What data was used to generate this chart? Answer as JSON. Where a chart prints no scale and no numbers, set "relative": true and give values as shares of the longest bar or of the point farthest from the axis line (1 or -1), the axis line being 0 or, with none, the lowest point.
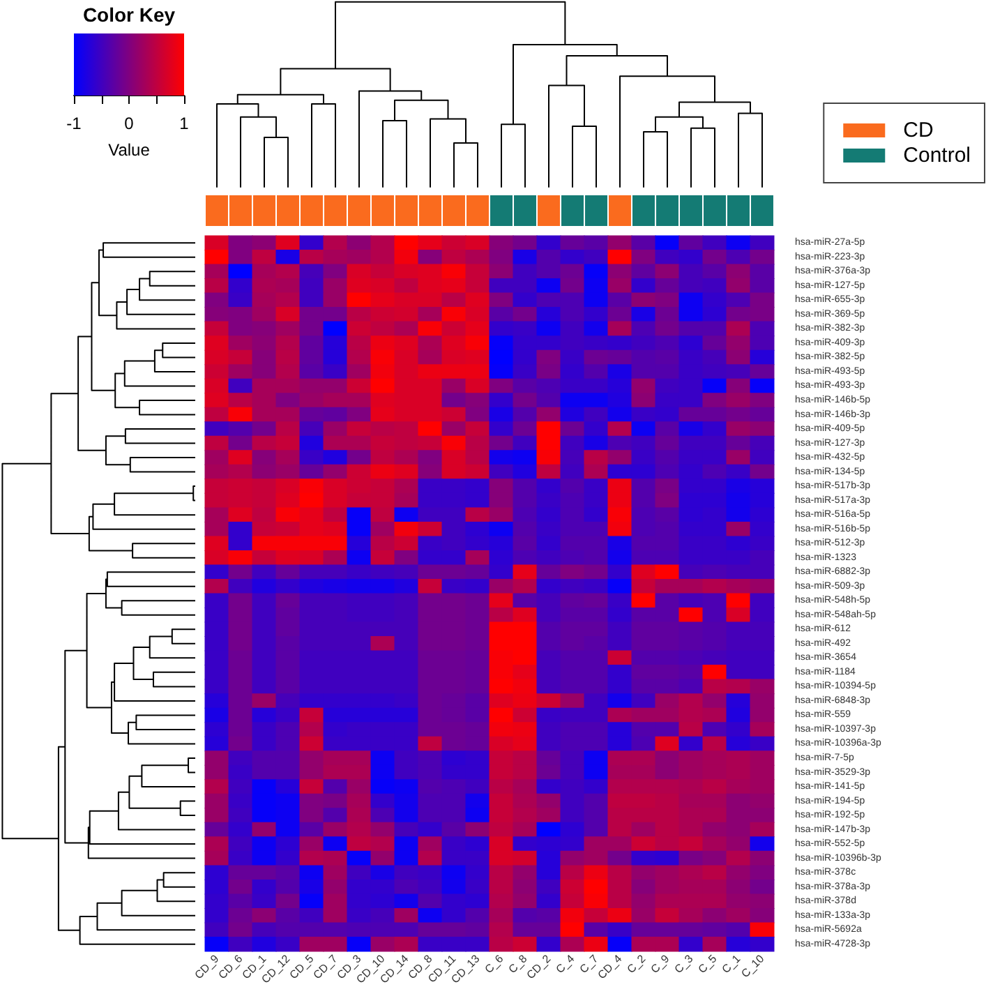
{
  "chart_data": [
    {
      "type": "bar",
      "categories": [
        null,
        null,
        null,
        null,
        null,
        null,
        null,
        null,
        null,
        null,
        null,
        null,
        null,
        null,
        null,
        null,
        null,
        null,
        null,
        null,
        null,
        null,
        null,
        null
      ],
      "series": [
        {
          "name": "CD",
          "color": "#fa6b1e",
          "values": [
            1,
            1,
            1,
            1,
            1,
            1,
            1,
            1,
            1,
            1,
            1,
            1,
            null,
            null,
            1,
            null,
            null,
            1,
            null,
            null,
            null,
            null,
            null,
            null
          ]
        },
        {
          "name": "Control",
          "color": "#147b74",
          "values": [
            null,
            null,
            null,
            null,
            null,
            null,
            null,
            null,
            null,
            null,
            null,
            null,
            1,
            1,
            null,
            1,
            1,
            null,
            1,
            1,
            1,
            1,
            1,
            1
          ]
        }
      ],
      "stacked": true,
      "relative": true,
      "legend": "top right"
    },
    {
      "type": "heatmap",
      "annotations": [
        "Color Key"
      ],
      "clabel": "Value",
      "clim": [
        -1,
        1
      ],
      "cticks": [
        -1,
        {
          "value": -0.5,
          "label": null
        },
        0,
        {
          "value": 0.5,
          "label": null
        },
        1
      ],
      "categories": [
        "CD_9",
        "CD_6",
        "CD_1",
        "CD_12",
        "CD_5",
        "CD_7",
        "CD_3",
        "CD_10",
        "CD_14",
        "CD_8",
        "CD_11",
        "CD_13",
        "C_6",
        "C_8",
        "CD_2",
        "C_4",
        "C_7",
        "CD_4",
        "C_2",
        "C_9",
        "C_3",
        "C_5",
        "C_1",
        "C_10"
      ],
      "y_categories": [
        "hsa-miR-27a-5p",
        "hsa-miR-223-3p",
        "hsa-miR-376a-3p",
        "hsa-miR-127-5p",
        "hsa-miR-655-3p",
        "hsa-miR-369-5p",
        "hsa-miR-382-3p",
        "hsa-miR-409-3p",
        "hsa-miR-382-5p",
        "hsa-miR-493-5p",
        "hsa-miR-493-3p",
        "hsa-miR-146b-5p",
        "hsa-miR-146b-3p",
        "hsa-miR-409-5p",
        "hsa-miR-127-3p",
        "hsa-miR-432-5p",
        "hsa-miR-134-5p",
        "hsa-miR-517b-3p",
        "hsa-miR-517a-3p",
        "hsa-miR-516a-5p",
        "hsa-miR-516b-5p",
        "hsa-miR-512-3p",
        "hsa-miR-1323",
        "hsa-miR-6882-3p",
        "hsa-miR-509-3p",
        "hsa-miR-548h-5p",
        "hsa-miR-548ah-5p",
        "hsa-miR-612",
        "hsa-miR-492",
        "hsa-miR-3654",
        "hsa-miR-1184",
        "hsa-miR-10394-5p",
        "hsa-miR-6848-3p",
        "hsa-miR-559",
        "hsa-miR-10397-3p",
        "hsa-miR-10396a-3p",
        "hsa-miR-7-5p",
        "hsa-miR-3529-3p",
        "hsa-miR-141-5p",
        "hsa-miR-194-5p",
        "hsa-miR-192-5p",
        "hsa-miR-147b-3p",
        "hsa-miR-552-5p",
        "hsa-miR-10396b-3p",
        "hsa-miR-378c",
        "hsa-miR-378a-3p",
        "hsa-miR-378d",
        "hsa-miR-133a-3p",
        "hsa-miR-5692a",
        "hsa-miR-4728-3p"
      ],
      "cells": [
        [
          0.7,
          0,
          0.1,
          0.75,
          -0.6,
          0.4,
          0.1,
          0.4,
          1,
          0.8,
          0.6,
          0.7,
          0.05,
          -0.1,
          -0.6,
          -0.2,
          -0.3,
          0.15,
          -0.3,
          -0.95,
          -0.25,
          -0.5,
          -0.9,
          -0.5
        ],
        [
          1,
          0,
          0.5,
          -0.8,
          0.45,
          0.3,
          0.25,
          0.4,
          0.9,
          0.05,
          0.5,
          0.35,
          0,
          -0.8,
          -0.35,
          -0.6,
          -0.5,
          1,
          0,
          -0.5,
          -0.6,
          -0.1,
          -0.4,
          -0.1
        ],
        [
          0.3,
          -1,
          0.3,
          0.4,
          -0.45,
          0,
          0.7,
          0.55,
          0.7,
          0.75,
          0.95,
          0.55,
          0.1,
          -0.5,
          -0.35,
          -0.15,
          -0.95,
          0.1,
          -0.25,
          0.1,
          -0.45,
          -0.3,
          0.1,
          -0.3
        ],
        [
          0.45,
          -0.6,
          0.35,
          0.3,
          -0.5,
          0.2,
          0.75,
          0.7,
          0.5,
          0.75,
          0.8,
          0.55,
          -0.5,
          -0.5,
          -0.9,
          -0.1,
          -0.9,
          0.2,
          -0.6,
          -0.2,
          -0.45,
          -0.5,
          0.15,
          -0.3
        ],
        [
          0,
          -0.55,
          0.3,
          0.4,
          -0.5,
          0.2,
          1,
          0.8,
          0.7,
          0.7,
          0.45,
          0.75,
          0,
          -0.6,
          -0.4,
          -0.4,
          -0.9,
          -0.3,
          0.1,
          0,
          -0.9,
          -0.6,
          -0.4,
          -0.05
        ],
        [
          0.05,
          0,
          0.25,
          0.7,
          -0.1,
          -0.1,
          0.45,
          0.6,
          0.65,
          0.3,
          0.95,
          0.7,
          -0.3,
          -0.1,
          -0.7,
          -0.4,
          -0.6,
          -0.15,
          -0.8,
          -0.15,
          -0.9,
          -0.65,
          -0.1,
          -0.05
        ],
        [
          0.55,
          0,
          0.05,
          0.25,
          -0.1,
          -1,
          0.6,
          0.5,
          0.35,
          0.95,
          0.6,
          0.8,
          -0.6,
          -0.55,
          -0.9,
          -0.5,
          -0.85,
          0.3,
          -0.4,
          -0.1,
          -0.35,
          -0.35,
          0.35,
          -0.4
        ],
        [
          0.75,
          0.25,
          0.1,
          0.4,
          -0.25,
          -0.7,
          0.45,
          0.85,
          0.75,
          0.35,
          0.75,
          0.95,
          -0.95,
          -0.6,
          -0.6,
          -0.5,
          -0.55,
          -0.6,
          -0.5,
          -0.4,
          -0.65,
          -0.2,
          0.15,
          -0.4
        ],
        [
          0.7,
          0.55,
          0.05,
          0.45,
          -0.25,
          -0.7,
          0.4,
          0.95,
          0.7,
          0.3,
          0.7,
          0.75,
          -1,
          -0.6,
          0,
          -0.55,
          -0.15,
          -0.2,
          -0.35,
          -0.3,
          -0.55,
          -0.45,
          0.1,
          -0.7
        ],
        [
          0.6,
          0.25,
          0.05,
          0.4,
          -0.3,
          -0.55,
          0.25,
          0.9,
          0.7,
          0.85,
          0.85,
          0.85,
          -0.95,
          -0.55,
          -0.05,
          -0.6,
          -0.35,
          -0.8,
          -0.35,
          -0.35,
          -0.55,
          -0.5,
          -0.45,
          -0.2
        ],
        [
          0.7,
          -0.5,
          0.3,
          0.3,
          0.15,
          0.15,
          0.6,
          1,
          0.7,
          0.7,
          0.2,
          0.7,
          0,
          -0.3,
          -0.4,
          -0.55,
          -0.55,
          -0.7,
          0.15,
          -0.5,
          -0.55,
          -0.95,
          0.05,
          -0.95
        ],
        [
          0.75,
          0.45,
          0.3,
          0,
          0.2,
          0.3,
          0.3,
          0.75,
          0.7,
          0.7,
          -0.1,
          0.05,
          -0.6,
          -0.1,
          -0.35,
          -0.9,
          -0.9,
          -0.75,
          0.1,
          -0.55,
          -0.55,
          0,
          0.2,
          0
        ],
        [
          0.5,
          0.95,
          0.3,
          0.3,
          -0.2,
          -0.25,
          0,
          0.8,
          0.7,
          0.7,
          0.6,
          0,
          -0.8,
          -0.35,
          0.15,
          -0.75,
          -0.5,
          -0.85,
          -0.55,
          -0.6,
          -0.2,
          -0.2,
          -0.1,
          -0.2
        ],
        [
          -0.5,
          -0.35,
          -0.1,
          0.45,
          -0.45,
          0.2,
          0.55,
          0.45,
          0.5,
          1,
          0.2,
          0.55,
          -0.6,
          -0.15,
          1,
          -0.15,
          -0.6,
          0.4,
          -0.9,
          -0.3,
          -0.8,
          -0.6,
          0.2,
          0.1
        ],
        [
          0.5,
          -0.1,
          0.45,
          0.55,
          -0.75,
          0.35,
          0.35,
          0.55,
          0.5,
          0.55,
          0.95,
          0.45,
          -0.1,
          -0.5,
          1,
          -0.5,
          -0.8,
          -0.4,
          -0.5,
          -0.2,
          -0.5,
          -0.5,
          -0.2,
          -0.45
        ],
        [
          0.25,
          0.75,
          0.05,
          0.3,
          -0.55,
          -0.75,
          -0.1,
          0.5,
          0.35,
          0,
          0.7,
          0.45,
          -0.85,
          -0.9,
          0.95,
          -0.45,
          0.45,
          0.15,
          -0.55,
          -0.35,
          -0.55,
          -0.55,
          0.2,
          -0.5
        ],
        [
          0.3,
          0.4,
          0.1,
          0.2,
          -0.2,
          0.15,
          0.6,
          0.85,
          0.75,
          0.05,
          0.7,
          0.6,
          -0.5,
          -0.75,
          0.5,
          -0.5,
          0.35,
          -0.65,
          -0.65,
          -0.4,
          -0.6,
          -0.4,
          -0.55,
          -0.1
        ],
        [
          0.55,
          0.6,
          0.55,
          0.7,
          0.95,
          0.7,
          0.6,
          0.55,
          0.35,
          -0.55,
          -0.55,
          -0.6,
          0.05,
          -0.35,
          -0.6,
          -0.35,
          -0.55,
          0.85,
          -0.35,
          -0.05,
          -0.6,
          -0.6,
          -0.8,
          -0.7
        ],
        [
          0.55,
          0.6,
          0.55,
          0.75,
          1,
          0.7,
          0.55,
          0.55,
          0.3,
          -0.55,
          -0.55,
          -0.6,
          0.05,
          -0.35,
          -0.55,
          -0.4,
          -0.55,
          0.85,
          -0.35,
          0,
          -0.65,
          -0.65,
          -0.85,
          -0.7
        ],
        [
          0.3,
          0.75,
          0.5,
          0.95,
          0.8,
          0.5,
          -0.95,
          0.5,
          -0.9,
          -0.5,
          -0.5,
          0.45,
          0.2,
          -0.4,
          -0.6,
          -0.4,
          -0.6,
          0.95,
          -0.4,
          -0.3,
          -0.65,
          -0.6,
          -0.85,
          -0.65
        ],
        [
          0.3,
          -0.6,
          0.55,
          0.6,
          0.8,
          0.75,
          -0.95,
          0.25,
          0.9,
          0.6,
          -0.5,
          -0.65,
          -0.9,
          -0.35,
          -0.55,
          -0.4,
          -0.4,
          0.9,
          -0.4,
          -0.35,
          -0.6,
          -0.6,
          0.2,
          -0.6
        ],
        [
          0.75,
          -0.6,
          0.95,
          0.95,
          0.95,
          0.95,
          -0.7,
          0.45,
          0.6,
          -0.55,
          -0.5,
          -0.6,
          -0.7,
          -0.3,
          -0.6,
          -0.35,
          -0.35,
          -0.8,
          -0.35,
          -0.35,
          -0.55,
          -0.55,
          -0.65,
          -0.55
        ],
        [
          0.7,
          0.95,
          0.55,
          0.75,
          0.7,
          0.35,
          -0.9,
          0.55,
          0,
          -0.6,
          -0.6,
          0.3,
          -0.65,
          -0.4,
          -0.5,
          -0.4,
          -0.35,
          -0.85,
          -0.4,
          -0.4,
          -0.55,
          -0.55,
          -0.55,
          -0.45
        ],
        [
          -0.6,
          -0.1,
          -0.5,
          -0.2,
          -0.45,
          -0.45,
          -0.55,
          -0.5,
          -0.45,
          -0.15,
          -0.15,
          -0.2,
          -0.6,
          0.8,
          -0.2,
          0,
          -0.1,
          -0.6,
          0.75,
          1,
          -0.45,
          -0.4,
          -0.45,
          -0.45
        ],
        [
          0.4,
          -0.5,
          -0.75,
          -0.6,
          -0.75,
          -0.8,
          -0.85,
          -0.85,
          -0.75,
          0.55,
          -0.55,
          -0.6,
          0.2,
          0.4,
          -0.6,
          -0.5,
          -0.55,
          -0.95,
          0.55,
          0.3,
          0.3,
          0.4,
          0.3,
          0.2
        ],
        [
          -0.55,
          -0.1,
          -0.5,
          -0.2,
          -0.45,
          -0.45,
          -0.5,
          -0.5,
          -0.45,
          -0.1,
          -0.1,
          -0.15,
          0.8,
          -0.3,
          -0.45,
          -0.25,
          -0.2,
          -0.55,
          1,
          -0.3,
          -0.45,
          -0.4,
          1,
          -0.5
        ],
        [
          -0.55,
          -0.1,
          -0.5,
          -0.25,
          -0.45,
          -0.45,
          -0.5,
          -0.5,
          -0.45,
          -0.1,
          -0.1,
          -0.15,
          0.45,
          0.75,
          -0.45,
          -0.3,
          -0.3,
          -0.6,
          -0.3,
          -0.3,
          1,
          -0.4,
          0.7,
          -0.5
        ],
        [
          -0.55,
          -0.1,
          -0.5,
          -0.25,
          -0.45,
          -0.45,
          -0.45,
          -0.45,
          -0.45,
          -0.1,
          -0.1,
          -0.15,
          1,
          1,
          -0.35,
          -0.25,
          -0.25,
          -0.5,
          -0.25,
          -0.25,
          -0.3,
          -0.35,
          -0.45,
          -0.45
        ],
        [
          -0.55,
          -0.1,
          -0.5,
          -0.3,
          -0.45,
          -0.45,
          -0.45,
          0.35,
          -0.45,
          -0.1,
          -0.1,
          -0.15,
          1,
          1,
          -0.35,
          -0.25,
          -0.3,
          -0.5,
          -0.25,
          -0.25,
          -0.3,
          -0.35,
          -0.45,
          -0.45
        ],
        [
          -0.55,
          -0.15,
          -0.5,
          -0.3,
          -0.5,
          -0.5,
          -0.5,
          -0.5,
          -0.5,
          -0.15,
          -0.15,
          -0.2,
          0.95,
          1,
          -0.45,
          -0.35,
          -0.35,
          0.6,
          -0.35,
          -0.35,
          -0.4,
          -0.45,
          -0.5,
          -0.5
        ],
        [
          -0.55,
          -0.15,
          -0.5,
          -0.3,
          -0.5,
          -0.5,
          -0.5,
          -0.5,
          -0.5,
          -0.15,
          -0.15,
          -0.2,
          0.95,
          0.8,
          -0.45,
          -0.35,
          -0.35,
          -0.6,
          -0.25,
          -0.25,
          -0.3,
          1,
          -0.5,
          -0.5
        ],
        [
          -0.55,
          -0.15,
          -0.5,
          -0.3,
          -0.5,
          -0.5,
          -0.5,
          -0.5,
          -0.5,
          -0.15,
          -0.15,
          -0.2,
          1,
          0.9,
          -0.45,
          -0.35,
          -0.35,
          -0.6,
          -0.3,
          -0.3,
          -0.4,
          0.45,
          0.4,
          0.2
        ],
        [
          -0.7,
          -0.15,
          0.2,
          -0.45,
          -0.6,
          -0.6,
          -0.6,
          -0.6,
          -0.55,
          -0.15,
          -0.2,
          -0.3,
          0.75,
          0.85,
          0.6,
          0.2,
          -0.5,
          -0.85,
          -0.5,
          0.2,
          0.4,
          0.15,
          -0.7,
          0.15
        ],
        [
          -0.8,
          -0.15,
          -0.7,
          -0.55,
          0.55,
          -0.7,
          -0.7,
          -0.7,
          -0.7,
          -0.15,
          -0.2,
          -0.3,
          1,
          0.6,
          -0.55,
          -0.5,
          -0.5,
          0.35,
          0.25,
          0.25,
          0.4,
          0.35,
          -0.75,
          0.15
        ],
        [
          -0.65,
          -0.15,
          -0.55,
          -0.4,
          0.4,
          -0.6,
          -0.55,
          -0.55,
          -0.55,
          -0.15,
          -0.15,
          -0.2,
          0.9,
          0.85,
          -0.5,
          -0.4,
          -0.4,
          -0.7,
          -0.35,
          -0.35,
          0.45,
          -0.4,
          -0.6,
          0.3
        ],
        [
          -0.7,
          -0.1,
          -0.55,
          -0.4,
          0.6,
          -0.55,
          -0.55,
          -0.55,
          -0.55,
          0.5,
          -0.15,
          -0.2,
          0.7,
          0.8,
          -0.5,
          -0.4,
          -0.4,
          -0.7,
          -0.4,
          0.75,
          -0.6,
          0.45,
          -0.7,
          -0.55
        ],
        [
          0.15,
          -0.5,
          -0.35,
          -0.35,
          0.15,
          0.3,
          0.3,
          -0.9,
          -0.5,
          -0.4,
          -0.65,
          -0.6,
          0.55,
          0.45,
          -0.2,
          -0.45,
          -0.9,
          0.35,
          0.35,
          0.1,
          0.25,
          0.3,
          0.35,
          0.25
        ],
        [
          0.15,
          -0.55,
          -0.35,
          -0.35,
          0.15,
          0.35,
          0.35,
          -0.9,
          -0.5,
          -0.4,
          -0.6,
          -0.6,
          0.55,
          0.45,
          -0.15,
          -0.45,
          -0.9,
          0.3,
          0.3,
          0.1,
          0.25,
          0.3,
          0.35,
          0.25
        ],
        [
          0.4,
          -0.5,
          -0.95,
          -0.7,
          0.55,
          -0.35,
          0.2,
          -0.95,
          -0.9,
          -0.35,
          -0.4,
          -0.5,
          0.45,
          0.3,
          -0.6,
          -0.5,
          -0.6,
          0.4,
          0.4,
          0.4,
          0.35,
          0.45,
          0.3,
          0.25
        ],
        [
          0.2,
          -0.55,
          -0.95,
          -0.9,
          0,
          -0.05,
          0.3,
          -0.6,
          -0.85,
          -0.4,
          -0.4,
          -0.85,
          0.55,
          0.35,
          0.15,
          -0.5,
          -0.35,
          0.5,
          0.5,
          0.45,
          0.3,
          0.3,
          0.1,
          0.15
        ],
        [
          0.2,
          -0.5,
          -0.95,
          -0.9,
          0,
          -0.35,
          0.35,
          -0.4,
          -0.85,
          -0.4,
          -0.4,
          -0.9,
          0.55,
          0.4,
          0.25,
          -0.5,
          -0.35,
          0.45,
          0.45,
          0.45,
          0.35,
          0.35,
          0.1,
          0.1
        ],
        [
          -0.2,
          -0.6,
          0.15,
          -0.9,
          -0.3,
          0.2,
          0.4,
          0.15,
          -0.45,
          -0.6,
          -0.3,
          0.1,
          0.5,
          0.3,
          -1,
          -0.65,
          -0.35,
          0.45,
          0.25,
          0.45,
          0.35,
          0.15,
          0.1,
          0.3
        ],
        [
          0.35,
          -0.5,
          -0.9,
          -0.65,
          0.2,
          -0.9,
          0.5,
          0.4,
          -0.9,
          0.25,
          -0.55,
          -0.65,
          0.7,
          -0.6,
          -0.65,
          -0.6,
          0.25,
          0.25,
          0.6,
          0.45,
          0.55,
          0.3,
          0.15,
          -0.85
        ],
        [
          0.3,
          -0.55,
          -0.9,
          -0.6,
          0.4,
          0.35,
          -0.95,
          0.15,
          -0.9,
          0.4,
          -0.55,
          -0.55,
          0.7,
          0.65,
          -0.7,
          0.15,
          0.25,
          -0.1,
          -0.6,
          -0.65,
          -0.05,
          0.05,
          0.4,
          0.1
        ],
        [
          -0.65,
          -0.2,
          -0.2,
          -0.3,
          -0.9,
          0.25,
          -0.5,
          -0.8,
          -0.5,
          -0.55,
          -0.9,
          -0.6,
          0.45,
          0.15,
          -0.7,
          0.45,
          0.85,
          0.45,
          0.15,
          0.25,
          0.35,
          0.45,
          0.15,
          0
        ],
        [
          -0.65,
          -0.1,
          -0.6,
          -0.35,
          -0.8,
          0.15,
          -0.6,
          -0.6,
          -0.4,
          -0.5,
          -0.85,
          -0.55,
          0.45,
          0.1,
          -0.5,
          0.6,
          1,
          0.45,
          0.05,
          0.25,
          0.3,
          0.3,
          0.1,
          -0.1
        ],
        [
          -0.6,
          -0.3,
          -0.55,
          -0.1,
          -0.95,
          0.25,
          -0.6,
          -0.65,
          -0.85,
          -0.35,
          -0.6,
          -0.65,
          0.4,
          0.15,
          -0.6,
          0.55,
          0.95,
          0.45,
          0.15,
          0.35,
          0.35,
          0.35,
          0.15,
          0.1
        ],
        [
          -0.6,
          -0.15,
          0.1,
          -0.3,
          -0.5,
          0.25,
          -0.55,
          -0.45,
          0.25,
          -0.9,
          -0.6,
          -0.35,
          0.3,
          -0.35,
          -0.3,
          0.9,
          0.55,
          0.85,
          0.2,
          0.55,
          0.3,
          0.1,
          0.25,
          0.05
        ],
        [
          -0.5,
          -0.1,
          -0.45,
          -0.35,
          -0.35,
          -0.35,
          -0.4,
          -0.4,
          -0.4,
          -0.2,
          -0.2,
          -0.25,
          0.4,
          -0.2,
          -0.2,
          1,
          -0.3,
          -0.55,
          -0.2,
          -0.2,
          -0.2,
          -0.25,
          -0.35,
          0.95
        ],
        [
          -0.95,
          -0.5,
          -0.75,
          -0.55,
          0.25,
          0.25,
          -0.95,
          0.2,
          0.35,
          -0.55,
          -0.55,
          -0.55,
          0.45,
          0.6,
          -0.6,
          0.35,
          0.85,
          -0.95,
          0.35,
          0.35,
          -0.6,
          0.3,
          -0.7,
          -0.6
        ]
      ]
    }
  ]
}
